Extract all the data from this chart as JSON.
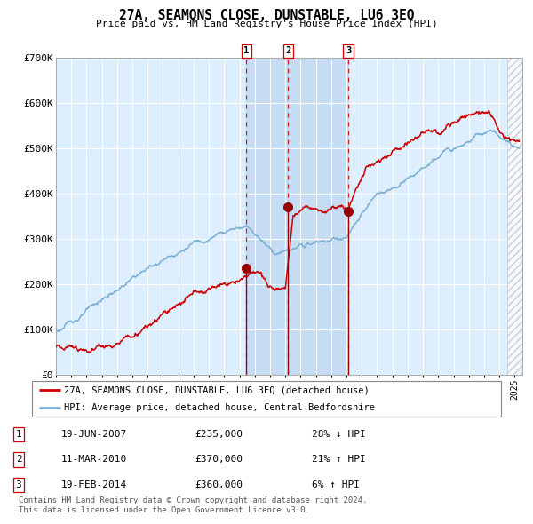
{
  "title": "27A, SEAMONS CLOSE, DUNSTABLE, LU6 3EQ",
  "subtitle": "Price paid vs. HM Land Registry's House Price Index (HPI)",
  "background_color": "#ffffff",
  "plot_bg_color": "#ddeeff",
  "grid_color": "#ffffff",
  "hpi_line_color": "#7bafd4",
  "sale_line_color": "#cc0000",
  "sale_dot_color": "#990000",
  "sale_dot_size": 7,
  "vline_color": "#cc0000",
  "xmin": 1995.0,
  "xmax": 2025.5,
  "ymin": 0,
  "ymax": 700000,
  "yticks": [
    0,
    100000,
    200000,
    300000,
    400000,
    500000,
    600000,
    700000
  ],
  "ytick_labels": [
    "£0",
    "£100K",
    "£200K",
    "£300K",
    "£400K",
    "£500K",
    "£600K",
    "£700K"
  ],
  "sale_dates": [
    2007.46,
    2010.19,
    2014.12
  ],
  "sale_prices": [
    235000,
    370000,
    360000
  ],
  "sale_labels": [
    "1",
    "2",
    "3"
  ],
  "legend_sale_label": "27A, SEAMONS CLOSE, DUNSTABLE, LU6 3EQ (detached house)",
  "legend_hpi_label": "HPI: Average price, detached house, Central Bedfordshire",
  "table_rows": [
    [
      "1",
      "19-JUN-2007",
      "£235,000",
      "28% ↓ HPI"
    ],
    [
      "2",
      "11-MAR-2010",
      "£370,000",
      "21% ↑ HPI"
    ],
    [
      "3",
      "19-FEB-2014",
      "£360,000",
      "6% ↑ HPI"
    ]
  ],
  "footnote": "Contains HM Land Registry data © Crown copyright and database right 2024.\nThis data is licensed under the Open Government Licence v3.0.",
  "hatch_region_start": 2024.5,
  "last_x": 2025.5
}
